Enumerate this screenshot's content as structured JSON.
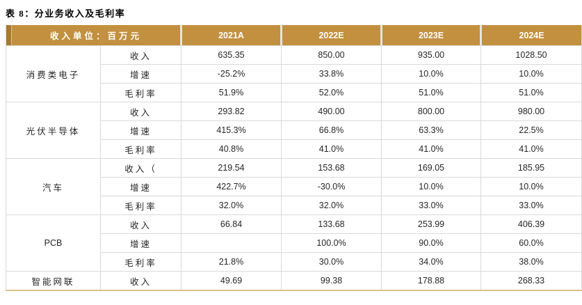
{
  "title": "表 8：分业务收入及毛利率",
  "table": {
    "unit_header": "收入单位：百万元",
    "year_columns": [
      "2021A",
      "2022E",
      "2023E",
      "2024E"
    ],
    "groups": [
      {
        "segment": "消费类电子",
        "rows": [
          {
            "metric": "收入",
            "values": [
              "635.35",
              "850.00",
              "935.00",
              "1028.50"
            ]
          },
          {
            "metric": "增速",
            "values": [
              "-25.2%",
              "33.8%",
              "10.0%",
              "10.0%"
            ]
          },
          {
            "metric": "毛利率",
            "values": [
              "51.9%",
              "52.0%",
              "51.0%",
              "51.0%"
            ]
          }
        ]
      },
      {
        "segment": "光伏半导体",
        "rows": [
          {
            "metric": "收入",
            "values": [
              "293.82",
              "490.00",
              "800.00",
              "980.00"
            ]
          },
          {
            "metric": "增速",
            "values": [
              "415.3%",
              "66.8%",
              "63.3%",
              "22.5%"
            ]
          },
          {
            "metric": "毛利率",
            "values": [
              "40.8%",
              "41.0%",
              "41.0%",
              "41.0%"
            ]
          }
        ]
      },
      {
        "segment": "汽车",
        "rows": [
          {
            "metric": "收入（",
            "values": [
              "219.54",
              "153.68",
              "169.05",
              "185.95"
            ]
          },
          {
            "metric": "增速",
            "values": [
              "422.7%",
              "-30.0%",
              "10.0%",
              "10.0%"
            ]
          },
          {
            "metric": "毛利率",
            "values": [
              "32.0%",
              "32.0%",
              "33.0%",
              "33.0%"
            ]
          }
        ]
      },
      {
        "segment": "PCB",
        "rows": [
          {
            "metric": "收入",
            "values": [
              "66.84",
              "133.68",
              "253.99",
              "406.39"
            ]
          },
          {
            "metric": "增速",
            "values": [
              "",
              "100.0%",
              "90.0%",
              "60.0%"
            ]
          },
          {
            "metric": "毛利率",
            "values": [
              "21.8%",
              "30.0%",
              "34.0%",
              "38.0%"
            ]
          }
        ]
      },
      {
        "segment": "智能网联",
        "rows": [
          {
            "metric": "收入",
            "values": [
              "49.69",
              "99.38",
              "178.88",
              "268.33"
            ]
          }
        ]
      }
    ]
  },
  "colors": {
    "header_bg": "#C2903E",
    "header_strip": "#A87A2E",
    "header_text": "#FFFFFF",
    "grid_line": "#D9D9D9",
    "bottom_border": "#DCC08C",
    "body_text": "#262626"
  }
}
